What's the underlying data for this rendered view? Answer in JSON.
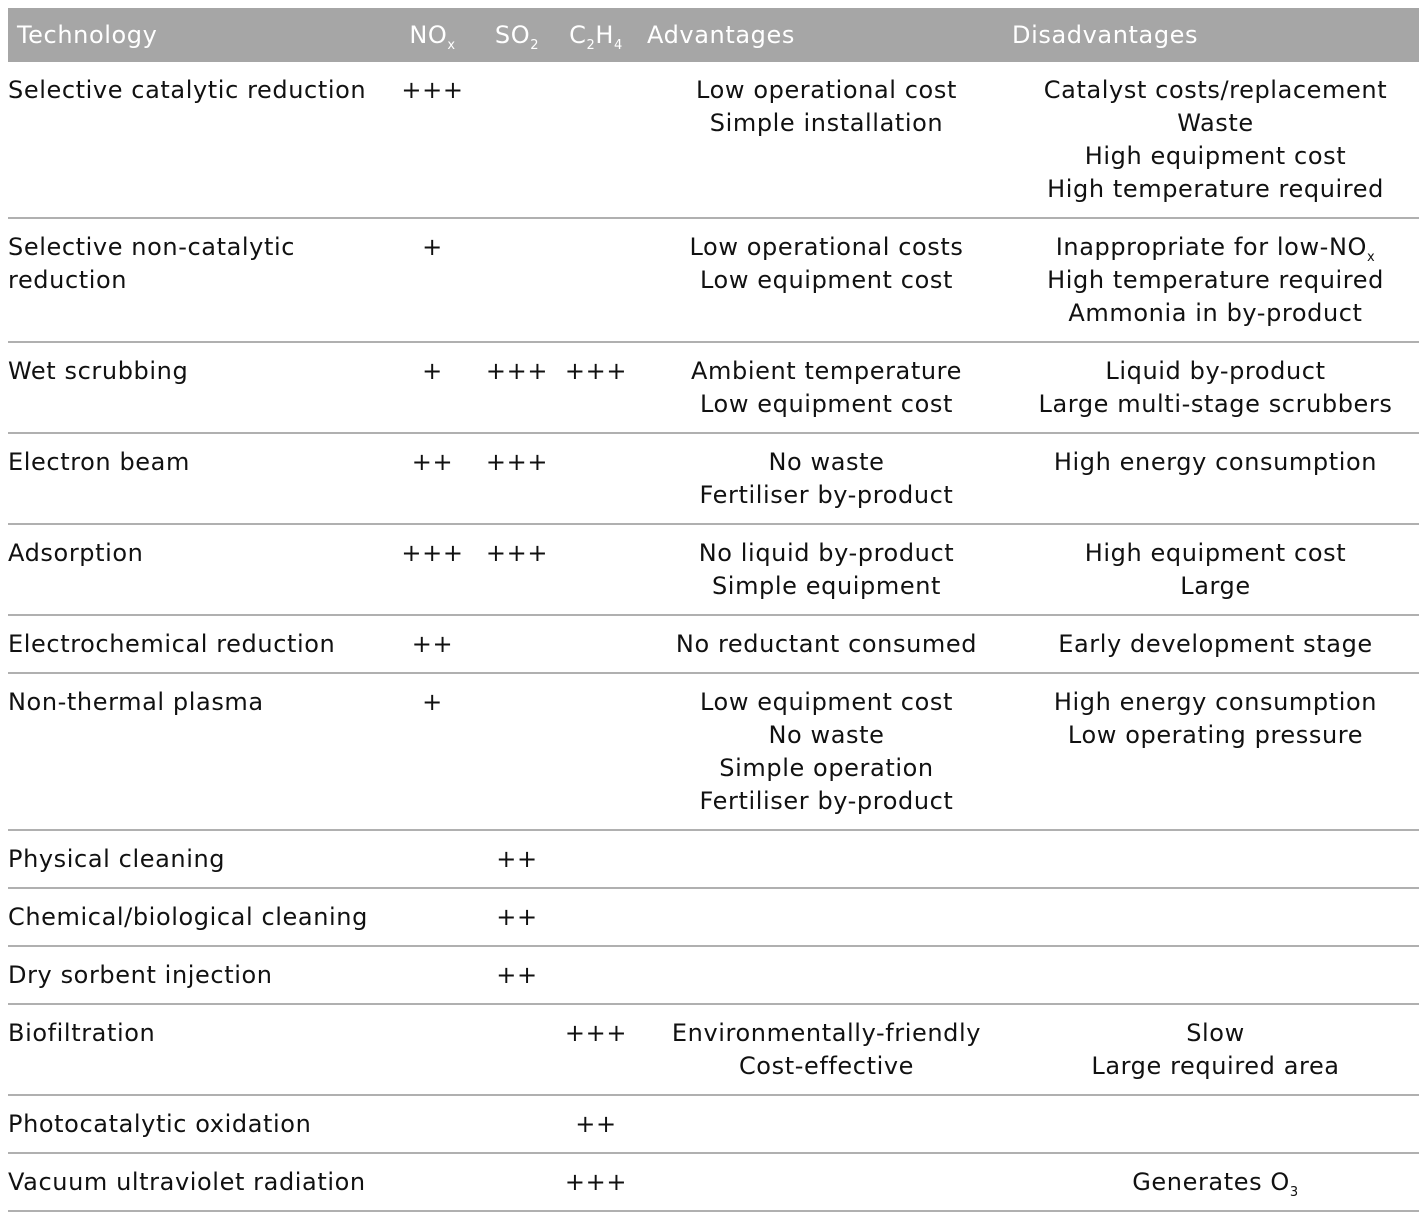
{
  "headers": {
    "technology": "Technology",
    "nox_main": "NO",
    "nox_sub": "x",
    "so2_main": "SO",
    "so2_sub": "2",
    "c2h4_c": "C",
    "c2h4_sub1": "2",
    "c2h4_h": "H",
    "c2h4_sub2": "4",
    "advantages": "Advantages",
    "disadvantages": "Disadvantages"
  },
  "rows": [
    {
      "technology": [
        "Selective catalytic reduction"
      ],
      "nox": "+++",
      "so2": "",
      "c2h4": "",
      "advantages": [
        "Low operational cost",
        "Simple installation"
      ],
      "disadvantages": [
        {
          "text": "Catalyst costs/replacement",
          "sub": ""
        },
        {
          "text": "Waste",
          "sub": ""
        },
        {
          "text": "High equipment cost",
          "sub": ""
        },
        {
          "text": "High temperature required",
          "sub": ""
        }
      ]
    },
    {
      "technology": [
        "Selective non-catalytic",
        "reduction"
      ],
      "nox": "+",
      "so2": "",
      "c2h4": "",
      "advantages": [
        "Low operational costs",
        "Low equipment cost"
      ],
      "disadvantages": [
        {
          "text": "Inappropriate for low-NO",
          "sub": "x"
        },
        {
          "text": "High temperature required",
          "sub": ""
        },
        {
          "text": "Ammonia in by-product",
          "sub": ""
        }
      ]
    },
    {
      "technology": [
        "Wet scrubbing"
      ],
      "nox": "+",
      "so2": "+++",
      "c2h4": "+++",
      "advantages": [
        "Ambient temperature",
        "Low equipment cost"
      ],
      "disadvantages": [
        {
          "text": "Liquid by-product",
          "sub": ""
        },
        {
          "text": "Large multi-stage scrubbers",
          "sub": ""
        }
      ]
    },
    {
      "technology": [
        "Electron beam"
      ],
      "nox": "++",
      "so2": "+++",
      "c2h4": "",
      "advantages": [
        "No waste",
        "Fertiliser by-product"
      ],
      "disadvantages": [
        {
          "text": "High energy consumption",
          "sub": ""
        }
      ]
    },
    {
      "technology": [
        "Adsorption"
      ],
      "nox": "+++",
      "so2": "+++",
      "c2h4": "",
      "advantages": [
        "No liquid by-product",
        "Simple equipment"
      ],
      "disadvantages": [
        {
          "text": "High equipment cost",
          "sub": ""
        },
        {
          "text": "Large",
          "sub": ""
        }
      ]
    },
    {
      "technology": [
        "Electrochemical reduction"
      ],
      "nox": "++",
      "so2": "",
      "c2h4": "",
      "advantages": [
        "No reductant consumed"
      ],
      "disadvantages": [
        {
          "text": "Early development stage",
          "sub": ""
        }
      ]
    },
    {
      "technology": [
        "Non-thermal plasma"
      ],
      "nox": "+",
      "so2": "",
      "c2h4": "",
      "advantages": [
        "Low equipment cost",
        "No waste",
        "Simple operation",
        "Fertiliser by-product"
      ],
      "disadvantages": [
        {
          "text": "High energy consumption",
          "sub": ""
        },
        {
          "text": "Low operating pressure",
          "sub": ""
        }
      ]
    },
    {
      "technology": [
        "Physical cleaning"
      ],
      "nox": "",
      "so2": "++",
      "c2h4": "",
      "advantages": [],
      "disadvantages": []
    },
    {
      "technology": [
        "Chemical/biological cleaning"
      ],
      "nox": "",
      "so2": "++",
      "c2h4": "",
      "advantages": [],
      "disadvantages": []
    },
    {
      "technology": [
        "Dry sorbent injection"
      ],
      "nox": "",
      "so2": "++",
      "c2h4": "",
      "advantages": [],
      "disadvantages": []
    },
    {
      "technology": [
        "Biofiltration"
      ],
      "nox": "",
      "so2": "",
      "c2h4": "+++",
      "advantages": [
        "Environmentally-friendly",
        "Cost-effective"
      ],
      "disadvantages": [
        {
          "text": "Slow",
          "sub": ""
        },
        {
          "text": "Large required area",
          "sub": ""
        }
      ]
    },
    {
      "technology": [
        "Photocatalytic oxidation"
      ],
      "nox": "",
      "so2": "",
      "c2h4": "++",
      "advantages": [],
      "disadvantages": []
    },
    {
      "technology": [
        "Vacuum ultraviolet radiation"
      ],
      "nox": "",
      "so2": "",
      "c2h4": "+++",
      "advantages": [],
      "disadvantages": [
        {
          "text": "Generates O",
          "sub": "3"
        }
      ]
    }
  ]
}
